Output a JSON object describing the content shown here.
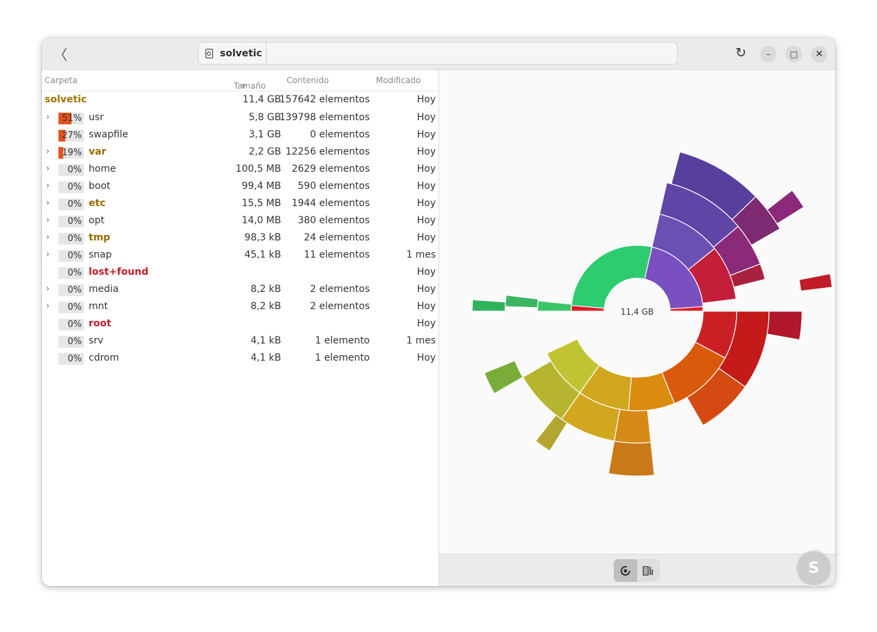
{
  "header": {
    "path_label": "solvetic",
    "back_icon": "chevron-left-icon",
    "refresh_icon": "refresh-icon",
    "minimize_icon": "minimize-icon",
    "maximize_icon": "maximize-icon",
    "close_icon": "close-icon"
  },
  "columns": {
    "folder": "Carpeta",
    "size": "Tamaño",
    "contents": "Contenido",
    "modified": "Modificado"
  },
  "root": {
    "name": "solvetic",
    "size": "11,4 GB",
    "contents": "157642 elementos",
    "modified": "Hoy"
  },
  "rows": [
    {
      "name": "usr",
      "pct": "51%",
      "pct_value": 51,
      "size": "5,8 GB",
      "contents": "139798 elementos",
      "modified": "Hoy",
      "expandable": true,
      "style": "normal"
    },
    {
      "name": "swapfile",
      "pct": "27%",
      "pct_value": 27,
      "size": "3,1 GB",
      "contents": "0 elementos",
      "modified": "Hoy",
      "expandable": false,
      "style": "normal"
    },
    {
      "name": "var",
      "pct": "19%",
      "pct_value": 19,
      "size": "2,2 GB",
      "contents": "12256 elementos",
      "modified": "Hoy",
      "expandable": true,
      "style": "folder"
    },
    {
      "name": "home",
      "pct": "0%",
      "pct_value": 0,
      "size": "100,5 MB",
      "contents": "2629 elementos",
      "modified": "Hoy",
      "expandable": true,
      "style": "normal"
    },
    {
      "name": "boot",
      "pct": "0%",
      "pct_value": 0,
      "size": "99,4 MB",
      "contents": "590 elementos",
      "modified": "Hoy",
      "expandable": true,
      "style": "normal"
    },
    {
      "name": "etc",
      "pct": "0%",
      "pct_value": 0,
      "size": "15,5 MB",
      "contents": "1944 elementos",
      "modified": "Hoy",
      "expandable": true,
      "style": "folder"
    },
    {
      "name": "opt",
      "pct": "0%",
      "pct_value": 0,
      "size": "14,0 MB",
      "contents": "380 elementos",
      "modified": "Hoy",
      "expandable": true,
      "style": "normal"
    },
    {
      "name": "tmp",
      "pct": "0%",
      "pct_value": 0,
      "size": "98,3 kB",
      "contents": "24 elementos",
      "modified": "Hoy",
      "expandable": true,
      "style": "folder"
    },
    {
      "name": "snap",
      "pct": "0%",
      "pct_value": 0,
      "size": "45,1 kB",
      "contents": "11 elementos",
      "modified": "1 mes",
      "expandable": true,
      "style": "normal"
    },
    {
      "name": "lost+found",
      "pct": "0%",
      "pct_value": 0,
      "size": "",
      "contents": "",
      "modified": "Hoy",
      "expandable": false,
      "style": "restricted"
    },
    {
      "name": "media",
      "pct": "0%",
      "pct_value": 0,
      "size": "8,2 kB",
      "contents": "2 elementos",
      "modified": "Hoy",
      "expandable": true,
      "style": "normal"
    },
    {
      "name": "mnt",
      "pct": "0%",
      "pct_value": 0,
      "size": "8,2 kB",
      "contents": "2 elementos",
      "modified": "Hoy",
      "expandable": true,
      "style": "normal"
    },
    {
      "name": "root",
      "pct": "0%",
      "pct_value": 0,
      "size": "",
      "contents": "",
      "modified": "Hoy",
      "expandable": false,
      "style": "restricted"
    },
    {
      "name": "srv",
      "pct": "0%",
      "pct_value": 0,
      "size": "4,1 kB",
      "contents": "1 elemento",
      "modified": "1 mes",
      "expandable": false,
      "style": "normal"
    },
    {
      "name": "cdrom",
      "pct": "0%",
      "pct_value": 0,
      "size": "4,1 kB",
      "contents": "1 elemento",
      "modified": "Hoy",
      "expandable": false,
      "style": "normal"
    }
  ],
  "chart": {
    "center_label": "11,4 GB"
  },
  "view_toggle": {
    "rings_icon": "rings-chart-icon",
    "treemap_icon": "treemap-chart-icon"
  },
  "watermark": {
    "letter": "S"
  }
}
